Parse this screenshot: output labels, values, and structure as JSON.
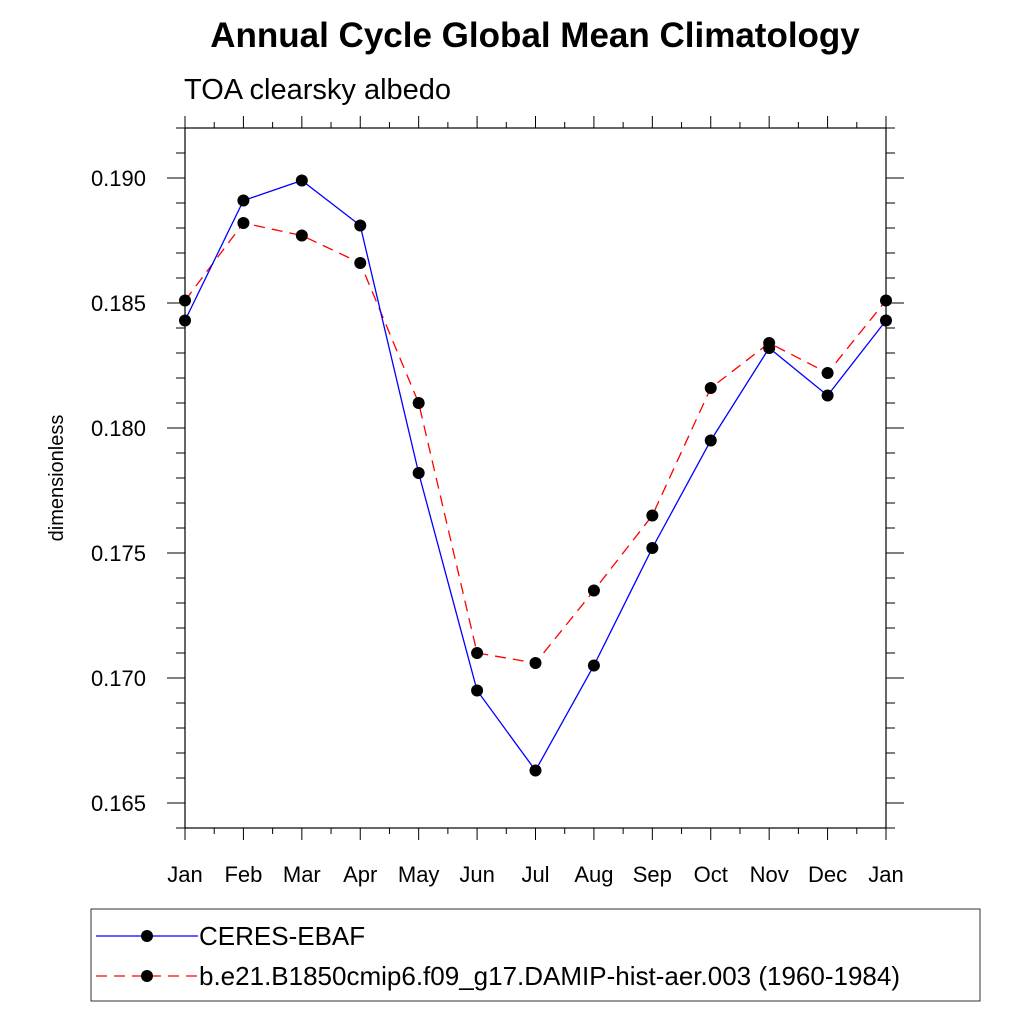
{
  "chart_data": {
    "type": "line",
    "title": "Annual Cycle Global Mean Climatology",
    "subtitle": "TOA clearsky albedo",
    "xlabel": "",
    "ylabel": "dimensionless",
    "categories": [
      "Jan",
      "Feb",
      "Mar",
      "Apr",
      "May",
      "Jun",
      "Jul",
      "Aug",
      "Sep",
      "Oct",
      "Nov",
      "Dec",
      "Jan"
    ],
    "ylim": [
      0.164,
      0.192
    ],
    "yticks": [
      "0.165",
      "0.170",
      "0.175",
      "0.180",
      "0.185",
      "0.190"
    ],
    "series": [
      {
        "name": "CERES-EBAF",
        "color": "#0000ff",
        "dash": "solid",
        "values": [
          0.1843,
          0.1891,
          0.1899,
          0.1881,
          0.1782,
          0.1695,
          0.1663,
          0.1705,
          0.1752,
          0.1795,
          0.1832,
          0.1813,
          0.1843
        ]
      },
      {
        "name": "b.e21.B1850cmip6.f09_g17.DAMIP-hist-aer.003 (1960-1984)",
        "color": "#ff0000",
        "dash": "dashed",
        "values": [
          0.1851,
          0.1882,
          0.1877,
          0.1866,
          0.181,
          0.171,
          0.1706,
          0.1735,
          0.1765,
          0.1816,
          0.1834,
          0.1822,
          0.1851
        ]
      }
    ],
    "grid": false,
    "legend_position": "bottom",
    "marker": "filled-circle",
    "marker_color": "#000000"
  }
}
